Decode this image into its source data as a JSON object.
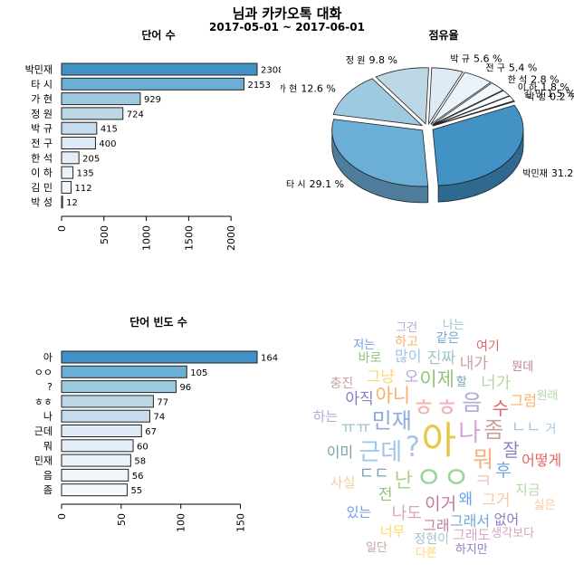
{
  "header": {
    "title": "님과 카카오톡 대화",
    "subtitle": "2017-05-01 ~ 2017-06-01"
  },
  "chart_data": [
    {
      "type": "bar",
      "orientation": "horizontal",
      "title": "단어 수",
      "categories": [
        "박민재",
        "타 시",
        "가 현",
        "정 원",
        "박 규",
        "전 구",
        "한 석",
        "이 하",
        "김 민",
        "박 성"
      ],
      "values": [
        2308,
        2153,
        929,
        724,
        415,
        400,
        205,
        135,
        112,
        12
      ],
      "xlim": [
        0,
        2308
      ],
      "x_ticks": [
        0,
        500,
        1000,
        1500,
        2000
      ],
      "colors": [
        "#4292c6",
        "#6baed6",
        "#9ecae1",
        "#bdd7e7",
        "#c6dbef",
        "#deebf7",
        "#e3eef8",
        "#eaf3fa",
        "#f0f6fb",
        "#f5f9fd"
      ],
      "data_labels": true
    },
    {
      "type": "pie",
      "style": "3d-exploded",
      "title": "점유율",
      "categories": [
        "박민재",
        "타 시",
        "가 현",
        "정 원",
        "박 규",
        "전 구",
        "한 석",
        "이 하",
        "김 민",
        "박 성"
      ],
      "values": [
        31.2,
        29.1,
        12.6,
        9.8,
        5.6,
        5.4,
        2.8,
        1.8,
        1.5,
        0.2
      ],
      "label_suffix": " %",
      "colors": [
        "#4292c6",
        "#6baed6",
        "#9ecae1",
        "#bdd7e7",
        "#deebf7",
        "#eaf2fa",
        "#f2f7fc",
        "#f7fafd",
        "#ffffff",
        "#ffffff"
      ]
    },
    {
      "type": "bar",
      "orientation": "horizontal",
      "title": "단어 빈도 수",
      "categories": [
        "아",
        "ㅇㅇ",
        "?",
        "ㅎㅎ",
        "나",
        "근데",
        "뭐",
        "민재",
        "음",
        "좀"
      ],
      "values": [
        164,
        105,
        96,
        77,
        74,
        67,
        60,
        58,
        56,
        55
      ],
      "xlim": [
        0,
        164
      ],
      "x_ticks": [
        0,
        50,
        100,
        150
      ],
      "colors": [
        "#4292c6",
        "#6baed6",
        "#9ecae1",
        "#bdd7e7",
        "#c6dbef",
        "#deebf7",
        "#e3eef8",
        "#eaf3fa",
        "#f0f6fb",
        "#f5f9fd"
      ],
      "data_labels": true
    },
    {
      "type": "wordcloud",
      "words": [
        {
          "text": "아",
          "weight": 164,
          "color": "#e6c94a"
        },
        {
          "text": "?",
          "weight": 96,
          "color": "#a9c4e4"
        },
        {
          "text": "ㅇㅇ",
          "weight": 105,
          "color": "#9bd49b"
        },
        {
          "text": "ㅎㅎ",
          "weight": 77,
          "color": "#f2b4b4"
        },
        {
          "text": "나",
          "weight": 74,
          "color": "#d9a3d9"
        },
        {
          "text": "근데",
          "weight": 67,
          "color": "#9fc5e8"
        },
        {
          "text": "뭐",
          "weight": 60,
          "color": "#f4b183"
        },
        {
          "text": "민재",
          "weight": 58,
          "color": "#8faadc"
        },
        {
          "text": "음",
          "weight": 56,
          "color": "#b4a7d6"
        },
        {
          "text": "좀",
          "weight": 55,
          "color": "#c9a0a0"
        },
        {
          "text": "난",
          "weight": 48,
          "color": "#a9d18e"
        },
        {
          "text": "ㅋ",
          "weight": 46,
          "color": "#f4cccc"
        },
        {
          "text": "아니",
          "weight": 40,
          "color": "#f6b26b"
        },
        {
          "text": "이제",
          "weight": 40,
          "color": "#93c47d"
        },
        {
          "text": "수",
          "weight": 38,
          "color": "#e06666"
        },
        {
          "text": "잘",
          "weight": 36,
          "color": "#8e7cc3"
        },
        {
          "text": "후",
          "weight": 34,
          "color": "#6fa8dc"
        },
        {
          "text": "이거",
          "weight": 32,
          "color": "#c27ba0"
        },
        {
          "text": "ㄷㄷ",
          "weight": 30,
          "color": "#76a5af"
        },
        {
          "text": "ㅠㅠ",
          "weight": 30,
          "color": "#a2c4c9"
        },
        {
          "text": "너가",
          "weight": 28,
          "color": "#b6d7a8"
        },
        {
          "text": "ㄴㄴ",
          "weight": 28,
          "color": "#9fc5e8"
        },
        {
          "text": "나도",
          "weight": 28,
          "color": "#d5a6bd"
        },
        {
          "text": "그거",
          "weight": 26,
          "color": "#f9cb9c"
        },
        {
          "text": "아직",
          "weight": 26,
          "color": "#8e7cc3"
        },
        {
          "text": "그냥",
          "weight": 26,
          "color": "#ffd966"
        },
        {
          "text": "왜",
          "weight": 26,
          "color": "#6d9eeb"
        },
        {
          "text": "오",
          "weight": 26,
          "color": "#b4a7d6"
        },
        {
          "text": "진짜",
          "weight": 24,
          "color": "#a2c4c9"
        },
        {
          "text": "내가",
          "weight": 24,
          "color": "#c9a0a0"
        },
        {
          "text": "전",
          "weight": 24,
          "color": "#93c47d"
        },
        {
          "text": "그럼",
          "weight": 22,
          "color": "#f6b26b"
        },
        {
          "text": "그래서",
          "weight": 22,
          "color": "#6fa8dc"
        },
        {
          "text": "어떻게",
          "weight": 22,
          "color": "#e06666"
        },
        {
          "text": "그래",
          "weight": 20,
          "color": "#c27ba0"
        },
        {
          "text": "이미",
          "weight": 20,
          "color": "#76a5af"
        },
        {
          "text": "많이",
          "weight": 20,
          "color": "#9fc5e8"
        },
        {
          "text": "지금",
          "weight": 18,
          "color": "#b6d7a8"
        },
        {
          "text": "그래도",
          "weight": 18,
          "color": "#d5a6bd"
        },
        {
          "text": "사실",
          "weight": 18,
          "color": "#f9cb9c"
        },
        {
          "text": "없어",
          "weight": 16,
          "color": "#8e7cc3"
        },
        {
          "text": "너무",
          "weight": 16,
          "color": "#ffd966"
        },
        {
          "text": "있는",
          "weight": 16,
          "color": "#6d9eeb"
        },
        {
          "text": "하는",
          "weight": 16,
          "color": "#b4a7d6"
        },
        {
          "text": "정현이",
          "weight": 14,
          "color": "#a2c4c9"
        },
        {
          "text": "충진",
          "weight": 14,
          "color": "#c9a0a0"
        },
        {
          "text": "바로",
          "weight": 14,
          "color": "#93c47d"
        },
        {
          "text": "하고",
          "weight": 14,
          "color": "#f6b26b"
        },
        {
          "text": "같은",
          "weight": 14,
          "color": "#6fa8dc"
        },
        {
          "text": "여기",
          "weight": 14,
          "color": "#e06666"
        },
        {
          "text": "뭔데",
          "weight": 12,
          "color": "#c27ba0"
        },
        {
          "text": "할",
          "weight": 12,
          "color": "#76a5af"
        },
        {
          "text": "거",
          "weight": 12,
          "color": "#9fc5e8"
        },
        {
          "text": "원래",
          "weight": 12,
          "color": "#b6d7a8"
        },
        {
          "text": "생각보다",
          "weight": 12,
          "color": "#d5a6bd"
        },
        {
          "text": "싫은",
          "weight": 12,
          "color": "#f9cb9c"
        },
        {
          "text": "하지만",
          "weight": 12,
          "color": "#8e7cc3"
        },
        {
          "text": "다른",
          "weight": 12,
          "color": "#ffd966"
        },
        {
          "text": "저는",
          "weight": 12,
          "color": "#6d9eeb"
        },
        {
          "text": "그건",
          "weight": 12,
          "color": "#b4a7d6"
        },
        {
          "text": "나는",
          "weight": 12,
          "color": "#a2c4c9"
        },
        {
          "text": "일단",
          "weight": 12,
          "color": "#c9a0a0"
        },
        {
          "text": "시바",
          "weight": 10,
          "color": "#93c47d"
        },
        {
          "text": "이건",
          "weight": 10,
          "color": "#f6b26b"
        },
        {
          "text": "보통",
          "weight": 10,
          "color": "#6fa8dc"
        },
        {
          "text": "맞아",
          "weight": 10,
          "color": "#e06666"
        },
        {
          "text": "누가",
          "weight": 10,
          "color": "#c27ba0"
        },
        {
          "text": "아하",
          "weight": 10,
          "color": "#76a5af"
        }
      ]
    }
  ]
}
